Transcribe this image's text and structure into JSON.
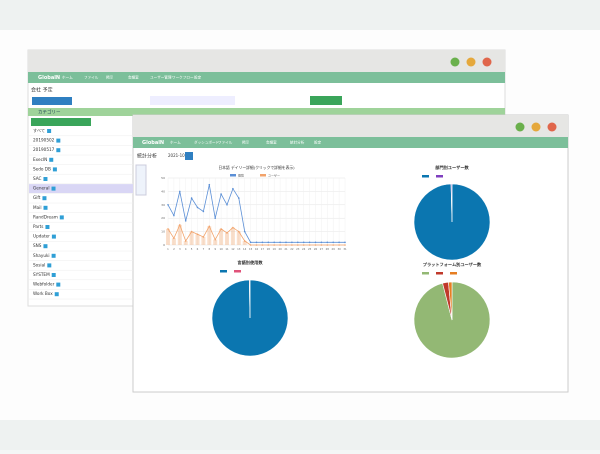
{
  "back_window": {
    "logo": "GlobalN",
    "nav": [
      "ホーム",
      "ファイル",
      "掲示",
      "会議室",
      "ユーザー管理",
      "ワークフロー",
      "設定"
    ],
    "page_title": "会社 予定",
    "category_header": "カテゴリー",
    "categories": [
      "すべて",
      "20190502",
      "20190517",
      "ExecIN",
      "Sedo DB",
      "SAC",
      "General",
      "Gift",
      "Mail",
      "RandDream",
      "Parts",
      "Updater",
      "SNS",
      "Shayuki",
      "Sosial",
      "SYSTEM",
      "Webfolder",
      "Work Box"
    ]
  },
  "front_window": {
    "logo": "GlobalN",
    "nav": [
      "ホーム",
      "ダッシュボード",
      "ファイル",
      "掲示",
      "会議室",
      "統計分析",
      "設定"
    ],
    "page_title": "統計分析",
    "month": "2021-10",
    "line_chart": {
      "title": "日本語 デイリー詳細(クリックで詳細を表示)",
      "x": [
        1,
        2,
        3,
        4,
        5,
        6,
        7,
        8,
        9,
        10,
        11,
        12,
        13,
        14,
        15,
        16,
        17,
        18,
        19,
        20,
        21,
        22,
        23,
        24,
        25,
        26,
        27,
        28,
        29,
        30,
        31
      ],
      "ylim": [
        0,
        50
      ],
      "yticks": [
        0,
        10,
        20,
        30,
        40,
        50
      ],
      "series": [
        {
          "name": "閲覧",
          "color": "#5b8fd6",
          "values": [
            30,
            22,
            40,
            18,
            35,
            28,
            25,
            45,
            20,
            38,
            30,
            42,
            35,
            10,
            2,
            2,
            2,
            2,
            2,
            2,
            2,
            2,
            2,
            2,
            2,
            2,
            2,
            2,
            2,
            2,
            2
          ]
        },
        {
          "name": "ユーザー",
          "color": "#f2a36b",
          "values": [
            12,
            5,
            15,
            3,
            10,
            8,
            6,
            14,
            4,
            12,
            9,
            13,
            10,
            3,
            0,
            0,
            0,
            0,
            0,
            0,
            0,
            0,
            0,
            0,
            0,
            0,
            0,
            0,
            0,
            0,
            0
          ]
        }
      ]
    },
    "pies": [
      {
        "title": "部門別ユーザー数",
        "colors": [
          "#0b76b0",
          "#7f3fbf"
        ],
        "values": [
          99.6,
          0.4
        ]
      },
      {
        "title": "言語別使用数",
        "colors": [
          "#0b76b0",
          "#e0527a"
        ],
        "values": [
          99.7,
          0.3
        ]
      },
      {
        "title": "プラットフォーム別ユーザー数",
        "colors": [
          "#93b874",
          "#c0392b",
          "#e67e22"
        ],
        "values": [
          96,
          2.5,
          1.5
        ]
      }
    ]
  }
}
